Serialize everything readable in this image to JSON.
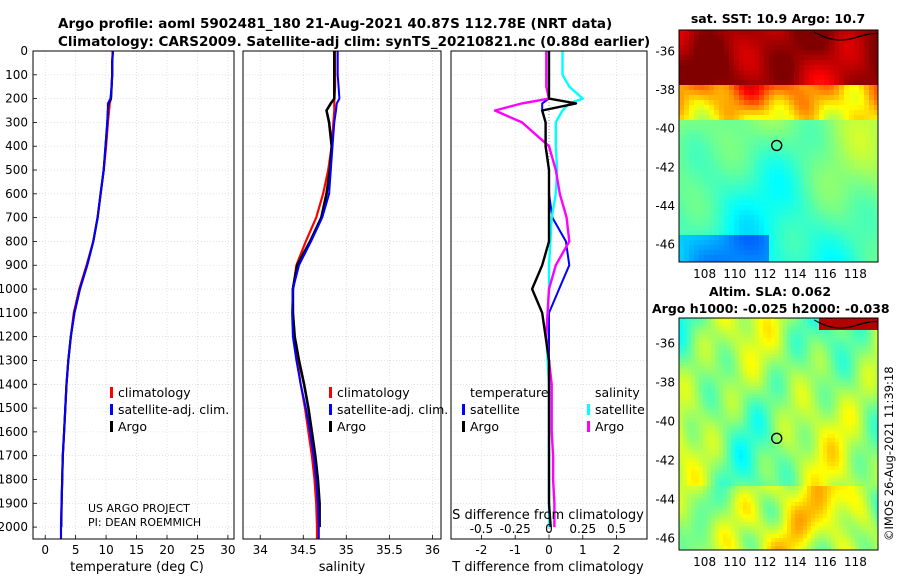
{
  "titles": {
    "line1": "Argo profile: aoml 5902481_180 21-Aug-2021 40.87S 112.78E (NRT data)",
    "line2": "Climatology: CARS2009. Satellite-adj clim: synTS_20210821.nc (0.88d earlier)"
  },
  "colors": {
    "climatology": "#ff0000",
    "satellite": "#0000ff",
    "argo": "#000000",
    "sat_salinity": "#00ffff",
    "argo_salinity": "#ff00ff",
    "grid": "#d0d0d0"
  },
  "chart_data": [
    {
      "type": "line",
      "name": "temperature-profile",
      "xlabel": "temperature (deg C)",
      "ylabel": "",
      "xlim": [
        -2,
        31
      ],
      "ylim": [
        0,
        2050
      ],
      "xticks": [
        0,
        5,
        10,
        15,
        20,
        25,
        30
      ],
      "yticks": [
        0,
        100,
        200,
        300,
        400,
        500,
        600,
        700,
        800,
        900,
        1000,
        1100,
        1200,
        1300,
        1400,
        1500,
        1600,
        1700,
        1800,
        1900,
        2000
      ],
      "depth": [
        0,
        50,
        100,
        150,
        200,
        220,
        250,
        300,
        400,
        500,
        600,
        700,
        800,
        900,
        1000,
        1100,
        1200,
        1300,
        1400,
        1500,
        1600,
        1700,
        1800,
        1900,
        2000,
        2050
      ],
      "series": [
        {
          "name": "climatology",
          "values": [
            11.1,
            11.0,
            11.0,
            10.9,
            10.8,
            10.6,
            10.5,
            10.3,
            10.0,
            9.6,
            9.1,
            8.6,
            7.9,
            6.8,
            5.6,
            4.7,
            4.2,
            3.8,
            3.5,
            3.3,
            3.1,
            2.9,
            2.8,
            2.7,
            2.6,
            2.6
          ]
        },
        {
          "name": "satellite-adj. clim.",
          "values": [
            11.1,
            11.0,
            11.0,
            10.9,
            10.7,
            10.3,
            10.3,
            10.2,
            9.9,
            9.6,
            9.1,
            8.6,
            7.9,
            6.9,
            5.7,
            4.8,
            4.2,
            3.8,
            3.5,
            3.3,
            3.1,
            2.9,
            2.8,
            2.7,
            2.6,
            2.6
          ]
        },
        {
          "name": "Argo",
          "values": [
            11.1,
            11.0,
            11.0,
            10.9,
            10.8,
            10.4,
            10.3,
            10.2,
            9.9,
            9.6,
            9.1,
            8.6,
            7.9,
            6.9,
            5.7,
            4.8,
            4.2,
            3.8,
            3.5,
            3.3,
            3.1,
            2.9,
            2.8,
            2.7,
            2.65,
            null
          ]
        }
      ],
      "legend": [
        "climatology",
        "satellite-adj. clim.",
        "Argo"
      ],
      "annotation": [
        "US ARGO PROJECT",
        "PI: DEAN ROEMMICH"
      ]
    },
    {
      "type": "line",
      "name": "salinity-profile",
      "xlabel": "salinity",
      "ylabel": "",
      "xlim": [
        33.8,
        36.1
      ],
      "ylim": [
        0,
        2050
      ],
      "xticks": [
        34,
        34.5,
        35,
        35.5,
        36
      ],
      "xticklabels": [
        "34",
        "34.5",
        "35",
        "35.5",
        "36"
      ],
      "depth": [
        0,
        50,
        100,
        150,
        200,
        220,
        250,
        300,
        400,
        500,
        600,
        700,
        800,
        900,
        1000,
        1100,
        1200,
        1300,
        1400,
        1500,
        1600,
        1700,
        1800,
        1900,
        2000,
        2050
      ],
      "series": [
        {
          "name": "climatology",
          "values": [
            34.87,
            34.87,
            34.87,
            34.87,
            34.86,
            34.86,
            34.86,
            34.85,
            34.83,
            34.79,
            34.73,
            34.65,
            34.53,
            34.42,
            34.38,
            34.38,
            34.4,
            34.43,
            34.47,
            34.52,
            34.56,
            34.6,
            34.63,
            34.65,
            34.66,
            34.66
          ]
        },
        {
          "name": "satellite-adj. clim.",
          "values": [
            34.9,
            34.9,
            34.9,
            34.91,
            34.92,
            34.89,
            34.88,
            34.86,
            34.84,
            34.82,
            34.8,
            34.72,
            34.59,
            34.45,
            34.38,
            34.37,
            34.38,
            34.42,
            34.47,
            34.53,
            34.58,
            34.62,
            34.65,
            34.67,
            34.68,
            34.68
          ]
        },
        {
          "name": "Argo",
          "values": [
            34.86,
            34.86,
            34.86,
            34.86,
            34.86,
            34.82,
            34.77,
            34.8,
            34.83,
            34.81,
            34.77,
            34.71,
            34.58,
            34.43,
            34.38,
            34.38,
            34.4,
            34.45,
            34.51,
            34.56,
            34.6,
            34.64,
            34.67,
            34.69,
            34.69,
            null
          ]
        }
      ],
      "legend": [
        "climatology",
        "satellite-adj. clim.",
        "Argo"
      ]
    },
    {
      "type": "line",
      "name": "difference-profile",
      "xlabel": "T difference from climatology",
      "xlabel_top": "S difference from climatology",
      "xlim": [
        -2.9,
        2.9
      ],
      "ylim": [
        0,
        2050
      ],
      "xticks": [
        -2,
        -1,
        0,
        1,
        2
      ],
      "xticklabels": [
        "-2",
        "-1",
        "0",
        "1",
        "2"
      ],
      "s_ticklabels": [
        "-0.5",
        "-0.25",
        "0",
        "0.25",
        "0.5"
      ],
      "depth": [
        0,
        50,
        100,
        150,
        200,
        220,
        250,
        300,
        400,
        500,
        600,
        700,
        800,
        900,
        1000,
        1100,
        1200,
        1300,
        1400,
        1500,
        1600,
        1700,
        1800,
        1900,
        2000
      ],
      "series": [
        {
          "name": "temperature satellite",
          "values": [
            0.0,
            0.0,
            0.0,
            0.0,
            0.0,
            -0.2,
            -0.2,
            -0.1,
            -0.1,
            0.0,
            0.0,
            0.1,
            0.5,
            0.6,
            0.3,
            0.0,
            0.0,
            0.0,
            0.0,
            0.0,
            0.0,
            0.0,
            0.0,
            0.0,
            0.0
          ]
        },
        {
          "name": "temperature Argo",
          "values": [
            0.0,
            0.0,
            0.0,
            0.0,
            0.0,
            0.8,
            -0.2,
            -0.1,
            -0.1,
            0.0,
            0.0,
            0.0,
            0.0,
            -0.2,
            -0.5,
            -0.2,
            -0.1,
            0.0,
            0.0,
            0.0,
            0.0,
            0.0,
            0.0,
            0.0,
            0.05
          ]
        },
        {
          "name": "salinity satellite",
          "values": [
            0.1,
            0.1,
            0.1,
            0.15,
            0.25,
            0.15,
            0.1,
            0.05,
            0.05,
            0.06,
            0.05,
            0.02,
            0.01,
            0.0,
            0.0,
            -0.01,
            -0.02,
            -0.01,
            0.0,
            0.0,
            0.0,
            0.0,
            0.0,
            0.0,
            0.0
          ]
        },
        {
          "name": "salinity Argo",
          "values": [
            -0.02,
            -0.02,
            -0.02,
            -0.02,
            0.0,
            -0.2,
            -0.4,
            -0.2,
            0.0,
            0.05,
            0.08,
            0.13,
            0.15,
            0.05,
            0.0,
            -0.01,
            -0.02,
            0.0,
            0.02,
            0.02,
            0.02,
            0.03,
            0.03,
            0.04,
            0.04
          ]
        }
      ],
      "legend_left_title": "temperature",
      "legend_right_title": "salinity",
      "legend_left": [
        "satellite",
        "Argo"
      ],
      "legend_right": [
        "satellite",
        "Argo"
      ]
    },
    {
      "type": "heatmap",
      "name": "sst-map",
      "title": "sat. SST: 10.9 Argo: 10.7",
      "xticks": [
        108,
        110,
        112,
        114,
        116,
        118
      ],
      "yticks": [
        -36,
        -38,
        -40,
        -42,
        -44,
        -46
      ],
      "xlim": [
        106.3,
        119.5
      ],
      "ylim": [
        -46.9,
        -34.9
      ],
      "marker": {
        "lon": 112.78,
        "lat": -40.87
      }
    },
    {
      "type": "heatmap",
      "name": "sla-map",
      "title": "Altim. SLA: 0.062",
      "subtitle": "Argo h1000: -0.025 h2000: -0.038",
      "xticks": [
        108,
        110,
        112,
        114,
        116,
        118
      ],
      "yticks": [
        -36,
        -38,
        -40,
        -42,
        -44,
        -46
      ],
      "xlim": [
        106.3,
        119.5
      ],
      "ylim": [
        -46.6,
        -34.7
      ],
      "marker": {
        "lon": 112.78,
        "lat": -40.87
      }
    }
  ],
  "stamp": "©IMOS 26-Aug-2021 11:39:18"
}
